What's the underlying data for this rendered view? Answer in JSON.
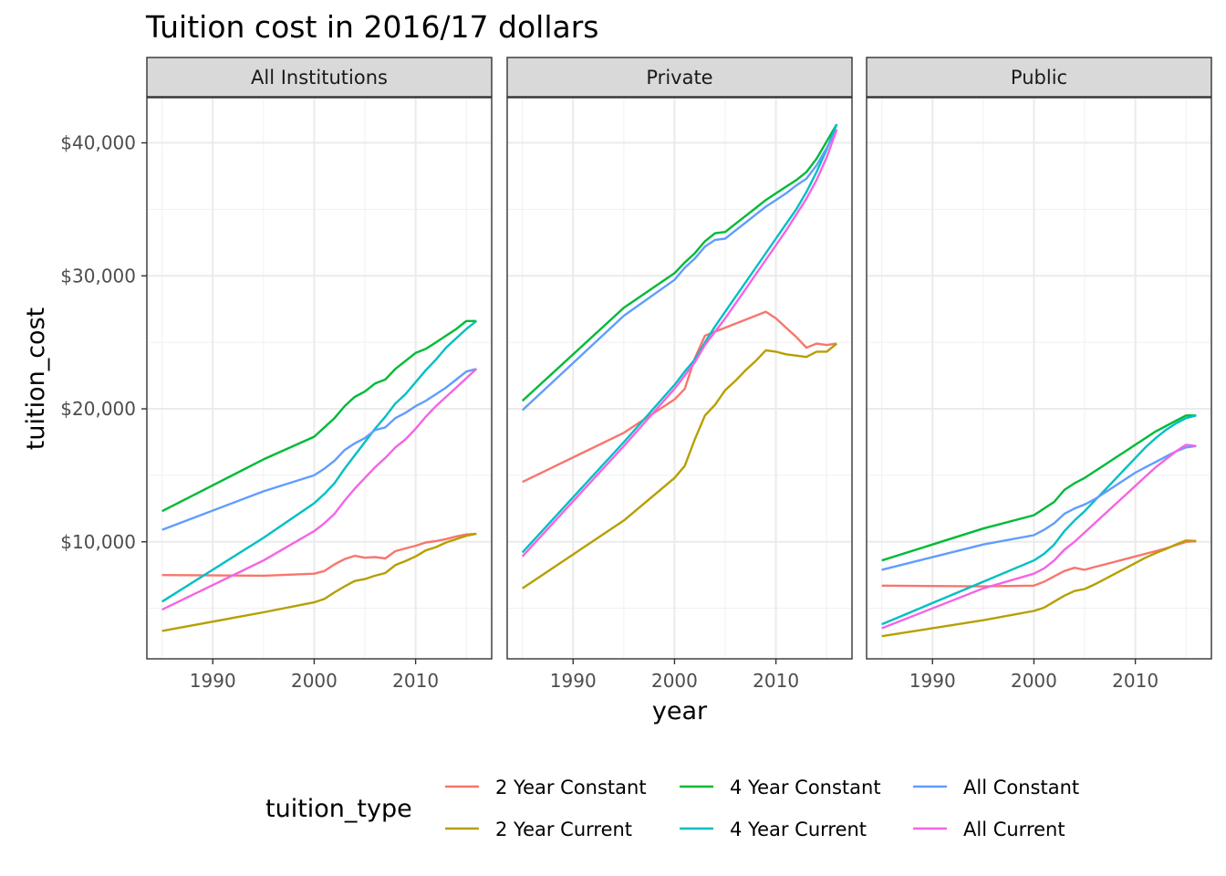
{
  "chart_data": {
    "type": "line",
    "title": "Tuition cost in 2016/17 dollars",
    "xlabel": "year",
    "ylabel": "tuition_cost",
    "xlim": [
      1983.5,
      2017.5
    ],
    "ylim": [
      1200,
      43400
    ],
    "x_ticks": [
      1990,
      2000,
      2010
    ],
    "x_tick_labels": [
      "1990",
      "2000",
      "2010"
    ],
    "y_ticks": [
      10000,
      20000,
      30000,
      40000
    ],
    "y_tick_labels": [
      "$10,000",
      "$20,000",
      "$30,000",
      "$40,000"
    ],
    "grid": true,
    "legend_title": "tuition_type",
    "legend_position": "bottom",
    "series_order": [
      "2 Year Constant",
      "2 Year Current",
      "4 Year Constant",
      "4 Year Current",
      "All Constant",
      "All Current"
    ],
    "colors": {
      "2 Year Constant": "#F8766D",
      "2 Year Current": "#B79F00",
      "4 Year Constant": "#00BA38",
      "4 Year Current": "#00BFC4",
      "All Constant": "#619CFF",
      "All Current": "#F564E3"
    },
    "facets": [
      {
        "label": "All Institutions",
        "series": [
          {
            "name": "2 Year Constant",
            "x": [
              1985,
              1995,
              2000,
              2001,
              2002,
              2003,
              2004,
              2005,
              2006,
              2007,
              2008,
              2009,
              2010,
              2011,
              2012,
              2013,
              2014,
              2015,
              2016
            ],
            "y": [
              7500,
              7450,
              7600,
              7800,
              8300,
              8700,
              8950,
              8800,
              8850,
              8750,
              9300,
              9500,
              9700,
              9950,
              10050,
              10200,
              10400,
              10550,
              10600
            ]
          },
          {
            "name": "2 Year Current",
            "x": [
              1985,
              1995,
              2000,
              2001,
              2002,
              2003,
              2004,
              2005,
              2006,
              2007,
              2008,
              2009,
              2010,
              2011,
              2012,
              2013,
              2014,
              2015,
              2016
            ],
            "y": [
              3300,
              4700,
              5450,
              5700,
              6200,
              6650,
              7050,
              7200,
              7450,
              7650,
              8250,
              8550,
              8900,
              9350,
              9600,
              9950,
              10200,
              10450,
              10600
            ]
          },
          {
            "name": "4 Year Constant",
            "x": [
              1985,
              1995,
              2000,
              2001,
              2002,
              2003,
              2004,
              2005,
              2006,
              2007,
              2008,
              2009,
              2010,
              2011,
              2012,
              2013,
              2014,
              2015,
              2016
            ],
            "y": [
              12300,
              16200,
              17900,
              18600,
              19300,
              20200,
              20900,
              21300,
              21900,
              22200,
              23000,
              23600,
              24200,
              24500,
              25000,
              25500,
              26000,
              26600,
              26600
            ]
          },
          {
            "name": "4 Year Current",
            "x": [
              1985,
              1995,
              2000,
              2001,
              2002,
              2003,
              2004,
              2005,
              2006,
              2007,
              2008,
              2009,
              2010,
              2011,
              2012,
              2013,
              2014,
              2015,
              2016
            ],
            "y": [
              5500,
              10300,
              12900,
              13600,
              14400,
              15500,
              16500,
              17500,
              18500,
              19400,
              20400,
              21100,
              22000,
              22900,
              23700,
              24600,
              25300,
              26000,
              26600
            ]
          },
          {
            "name": "All Constant",
            "x": [
              1985,
              1995,
              2000,
              2001,
              2002,
              2003,
              2004,
              2005,
              2006,
              2007,
              2008,
              2009,
              2010,
              2011,
              2012,
              2013,
              2014,
              2015,
              2016
            ],
            "y": [
              10900,
              13800,
              15000,
              15500,
              16100,
              16900,
              17400,
              17800,
              18400,
              18600,
              19300,
              19700,
              20200,
              20600,
              21100,
              21600,
              22200,
              22800,
              23000
            ]
          },
          {
            "name": "All Current",
            "x": [
              1985,
              1995,
              2000,
              2001,
              2002,
              2003,
              2004,
              2005,
              2006,
              2007,
              2008,
              2009,
              2010,
              2011,
              2012,
              2013,
              2014,
              2015,
              2016
            ],
            "y": [
              4900,
              8600,
              10800,
              11400,
              12100,
              13100,
              14000,
              14800,
              15600,
              16300,
              17100,
              17700,
              18500,
              19400,
              20200,
              20900,
              21600,
              22300,
              23000
            ]
          }
        ]
      },
      {
        "label": "Private",
        "series": [
          {
            "name": "2 Year Constant",
            "x": [
              1985,
              1995,
              2000,
              2001,
              2002,
              2003,
              2004,
              2005,
              2006,
              2007,
              2008,
              2009,
              2010,
              2011,
              2012,
              2013,
              2014,
              2015,
              2016
            ],
            "y": [
              14500,
              18200,
              20700,
              21500,
              23800,
              25500,
              25800,
              26100,
              26400,
              26700,
              27000,
              27300,
              26800,
              26100,
              25400,
              24600,
              24900,
              24800,
              24900
            ]
          },
          {
            "name": "2 Year Current",
            "x": [
              1985,
              1995,
              2000,
              2001,
              2002,
              2003,
              2004,
              2005,
              2006,
              2007,
              2008,
              2009,
              2010,
              2011,
              2012,
              2013,
              2014,
              2015,
              2016
            ],
            "y": [
              6500,
              11600,
              14800,
              15700,
              17700,
              19500,
              20300,
              21400,
              22100,
              22900,
              23600,
              24400,
              24300,
              24100,
              24000,
              23900,
              24300,
              24300,
              24900
            ]
          },
          {
            "name": "4 Year Constant",
            "x": [
              1985,
              1995,
              2000,
              2001,
              2002,
              2003,
              2004,
              2005,
              2006,
              2007,
              2008,
              2009,
              2010,
              2011,
              2012,
              2013,
              2014,
              2015,
              2016
            ],
            "y": [
              20600,
              27600,
              30200,
              31000,
              31700,
              32600,
              33200,
              33300,
              33900,
              34500,
              35100,
              35700,
              36200,
              36700,
              37200,
              37800,
              38800,
              40100,
              41400
            ]
          },
          {
            "name": "4 Year Current",
            "x": [
              1985,
              1995,
              2000,
              2001,
              2002,
              2003,
              2004,
              2005,
              2006,
              2007,
              2008,
              2009,
              2010,
              2011,
              2012,
              2013,
              2014,
              2015,
              2016
            ],
            "y": [
              9200,
              17500,
              21800,
              22800,
              23700,
              25000,
              26200,
              27300,
              28400,
              29500,
              30600,
              31700,
              32800,
              33900,
              35000,
              36300,
              37800,
              39500,
              41400
            ]
          },
          {
            "name": "All Constant",
            "x": [
              1985,
              1995,
              2000,
              2001,
              2002,
              2003,
              2004,
              2005,
              2006,
              2007,
              2008,
              2009,
              2010,
              2011,
              2012,
              2013,
              2014,
              2015,
              2016
            ],
            "y": [
              19900,
              27000,
              29700,
              30600,
              31300,
              32200,
              32700,
              32800,
              33400,
              34000,
              34600,
              35200,
              35700,
              36200,
              36800,
              37300,
              38300,
              39600,
              41000
            ]
          },
          {
            "name": "All Current",
            "x": [
              1985,
              1995,
              2000,
              2001,
              2002,
              2003,
              2004,
              2005,
              2006,
              2007,
              2008,
              2009,
              2010,
              2011,
              2012,
              2013,
              2014,
              2015,
              2016
            ],
            "y": [
              8900,
              17200,
              21500,
              22500,
              23500,
              24800,
              25800,
              26800,
              27900,
              29000,
              30100,
              31200,
              32300,
              33400,
              34600,
              35800,
              37200,
              38900,
              41000
            ]
          }
        ]
      },
      {
        "label": "Public",
        "series": [
          {
            "name": "2 Year Constant",
            "x": [
              1985,
              1995,
              2000,
              2001,
              2002,
              2003,
              2004,
              2005,
              2006,
              2007,
              2008,
              2009,
              2010,
              2011,
              2012,
              2013,
              2014,
              2015,
              2016
            ],
            "y": [
              6700,
              6650,
              6700,
              7000,
              7400,
              7800,
              8050,
              7900,
              8100,
              8300,
              8500,
              8700,
              8900,
              9100,
              9300,
              9500,
              9750,
              10000,
              10050
            ]
          },
          {
            "name": "2 Year Current",
            "x": [
              1985,
              1995,
              2000,
              2001,
              2002,
              2003,
              2004,
              2005,
              2006,
              2007,
              2008,
              2009,
              2010,
              2011,
              2012,
              2013,
              2014,
              2015,
              2016
            ],
            "y": [
              2900,
              4100,
              4800,
              5050,
              5500,
              5950,
              6300,
              6450,
              6800,
              7200,
              7600,
              8000,
              8400,
              8800,
              9150,
              9450,
              9800,
              10100,
              10050
            ]
          },
          {
            "name": "4 Year Constant",
            "x": [
              1985,
              1995,
              2000,
              2001,
              2002,
              2003,
              2004,
              2005,
              2006,
              2007,
              2008,
              2009,
              2010,
              2011,
              2012,
              2013,
              2014,
              2015,
              2016
            ],
            "y": [
              8600,
              11000,
              12000,
              12500,
              13000,
              13900,
              14400,
              14800,
              15300,
              15800,
              16300,
              16800,
              17300,
              17800,
              18300,
              18700,
              19100,
              19500,
              19500
            ]
          },
          {
            "name": "4 Year Current",
            "x": [
              1985,
              1995,
              2000,
              2001,
              2002,
              2003,
              2004,
              2005,
              2006,
              2007,
              2008,
              2009,
              2010,
              2011,
              2012,
              2013,
              2014,
              2015,
              2016
            ],
            "y": [
              3800,
              7000,
              8600,
              9100,
              9800,
              10800,
              11600,
              12300,
              13100,
              13900,
              14700,
              15500,
              16300,
              17100,
              17800,
              18400,
              18900,
              19300,
              19500
            ]
          },
          {
            "name": "All Constant",
            "x": [
              1985,
              1995,
              2000,
              2001,
              2002,
              2003,
              2004,
              2005,
              2006,
              2007,
              2008,
              2009,
              2010,
              2011,
              2012,
              2013,
              2014,
              2015,
              2016
            ],
            "y": [
              7900,
              9800,
              10500,
              10900,
              11400,
              12100,
              12500,
              12800,
              13200,
              13700,
              14200,
              14700,
              15200,
              15600,
              16000,
              16400,
              16800,
              17100,
              17200
            ]
          },
          {
            "name": "All Current",
            "x": [
              1985,
              1995,
              2000,
              2001,
              2002,
              2003,
              2004,
              2005,
              2006,
              2007,
              2008,
              2009,
              2010,
              2011,
              2012,
              2013,
              2014,
              2015,
              2016
            ],
            "y": [
              3500,
              6500,
              7600,
              8000,
              8600,
              9400,
              10000,
              10700,
              11400,
              12100,
              12800,
              13500,
              14200,
              14900,
              15600,
              16200,
              16800,
              17300,
              17200
            ]
          }
        ]
      }
    ]
  }
}
